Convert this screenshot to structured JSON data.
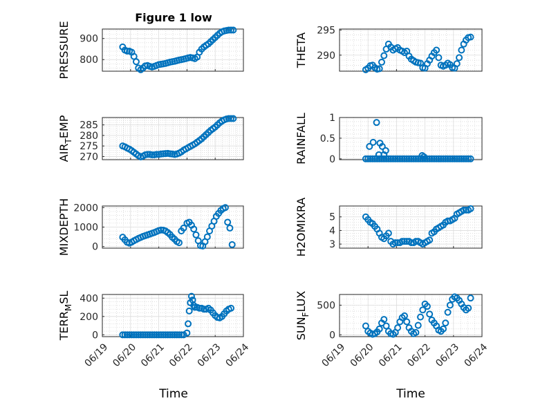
{
  "figure": {
    "title": "Figure 1 low",
    "marker_color": "#0072BD",
    "x_ticks": [
      "06/19",
      "06/20",
      "06/21",
      "06/22",
      "06/23",
      "06/24"
    ],
    "x_label": "Time"
  },
  "chart_data": [
    {
      "type": "scatter",
      "ylabel": "PRESSURE",
      "xlim": [
        0,
        5
      ],
      "ylim": [
        745,
        945
      ],
      "yticks": [
        800,
        900
      ],
      "ytick_labels": [
        "800",
        "900"
      ],
      "grid": true,
      "x": [
        0.72,
        0.8,
        0.88,
        0.96,
        1.04,
        1.12,
        1.2,
        1.28,
        1.36,
        1.44,
        1.52,
        1.6,
        1.68,
        1.76,
        1.84,
        1.92,
        2.0,
        2.08,
        2.16,
        2.24,
        2.32,
        2.4,
        2.48,
        2.56,
        2.64,
        2.72,
        2.8,
        2.88,
        2.96,
        3.04,
        3.12,
        3.2,
        3.28,
        3.36,
        3.44,
        3.52,
        3.6,
        3.68,
        3.76,
        3.84,
        3.92,
        4.0,
        4.08,
        4.16,
        4.24,
        4.32,
        4.4,
        4.48,
        4.56,
        4.64
      ],
      "y": [
        860,
        845,
        840,
        840,
        835,
        815,
        790,
        760,
        752,
        760,
        770,
        772,
        768,
        765,
        768,
        772,
        776,
        778,
        780,
        782,
        785,
        788,
        790,
        792,
        795,
        798,
        800,
        802,
        805,
        808,
        810,
        808,
        805,
        812,
        835,
        850,
        860,
        868,
        875,
        885,
        895,
        905,
        915,
        925,
        932,
        936,
        938,
        940,
        940,
        940
      ]
    },
    {
      "type": "scatter",
      "ylabel": "THETA",
      "xlim": [
        0,
        5
      ],
      "ylim": [
        286.8,
        295.2
      ],
      "yticks": [
        290,
        295
      ],
      "ytick_labels": [
        "290",
        "295"
      ],
      "grid": true,
      "x": [
        0.92,
        1.0,
        1.08,
        1.16,
        1.24,
        1.32,
        1.4,
        1.48,
        1.56,
        1.64,
        1.72,
        1.8,
        1.88,
        1.96,
        2.04,
        2.12,
        2.2,
        2.28,
        2.36,
        2.44,
        2.52,
        2.6,
        2.68,
        2.76,
        2.84,
        2.92,
        3.0,
        3.08,
        3.16,
        3.24,
        3.32,
        3.4,
        3.48,
        3.56,
        3.64,
        3.72,
        3.8,
        3.88,
        3.96,
        4.04,
        4.12,
        4.2,
        4.28,
        4.36,
        4.44,
        4.52,
        4.6
      ],
      "y": [
        287.1,
        287.4,
        287.9,
        288.0,
        287.5,
        287.2,
        287.3,
        288.6,
        289.9,
        291.2,
        292.2,
        291.6,
        291.0,
        291.3,
        291.5,
        291.0,
        290.8,
        290.5,
        290.8,
        289.8,
        289.2,
        288.9,
        288.6,
        288.5,
        288.4,
        287.5,
        287.4,
        288.3,
        289.0,
        289.8,
        290.5,
        291.0,
        289.5,
        288.0,
        287.8,
        288.0,
        288.4,
        288.1,
        287.5,
        287.4,
        288.3,
        289.5,
        291.0,
        292.2,
        293.0,
        293.5,
        293.6
      ]
    },
    {
      "type": "scatter",
      "ylabel": "AIR_TEMP",
      "xlim": [
        0,
        5
      ],
      "ylim": [
        268.5,
        288.5
      ],
      "yticks": [
        270,
        275,
        280,
        285
      ],
      "ytick_labels": [
        "270",
        "275",
        "280",
        "285"
      ],
      "grid": true,
      "x": [
        0.72,
        0.8,
        0.88,
        0.96,
        1.04,
        1.12,
        1.2,
        1.28,
        1.36,
        1.44,
        1.52,
        1.6,
        1.68,
        1.76,
        1.84,
        1.92,
        2.0,
        2.08,
        2.16,
        2.24,
        2.32,
        2.4,
        2.48,
        2.56,
        2.64,
        2.72,
        2.8,
        2.88,
        2.96,
        3.04,
        3.12,
        3.2,
        3.28,
        3.36,
        3.44,
        3.52,
        3.6,
        3.68,
        3.76,
        3.84,
        3.92,
        4.0,
        4.08,
        4.16,
        4.24,
        4.32,
        4.4,
        4.48,
        4.56,
        4.64
      ],
      "y": [
        275.0,
        274.6,
        274.0,
        273.5,
        272.8,
        272.0,
        271.2,
        270.4,
        269.8,
        270.2,
        270.8,
        271.0,
        271.0,
        270.8,
        270.8,
        271.0,
        271.0,
        271.2,
        271.3,
        271.4,
        271.5,
        271.3,
        271.2,
        271.0,
        271.2,
        271.6,
        272.2,
        273.0,
        273.6,
        274.2,
        274.8,
        275.4,
        276.0,
        276.8,
        277.6,
        278.4,
        279.4,
        280.4,
        281.4,
        282.4,
        283.2,
        284.0,
        285.0,
        286.0,
        286.8,
        287.4,
        287.8,
        288.0,
        288.0,
        288.0
      ]
    },
    {
      "type": "scatter",
      "ylabel": "RAINFALL",
      "xlim": [
        0,
        5
      ],
      "ylim": [
        -0.02,
        1.0
      ],
      "yticks": [
        0,
        0.5,
        1
      ],
      "ytick_labels": [
        "0",
        "0.5",
        "1"
      ],
      "grid": true,
      "x": [
        0.92,
        1.0,
        1.08,
        1.16,
        1.24,
        1.32,
        1.4,
        1.48,
        1.56,
        1.64,
        1.72,
        1.8,
        1.88,
        1.96,
        2.04,
        2.12,
        2.2,
        2.28,
        2.36,
        2.44,
        2.52,
        2.6,
        2.68,
        2.76,
        2.84,
        2.92,
        3.0,
        3.08,
        3.16,
        3.24,
        3.32,
        3.4,
        3.48,
        3.56,
        3.64,
        3.72,
        3.8,
        3.88,
        3.96,
        4.04,
        4.12,
        4.2,
        4.28,
        4.36,
        4.44,
        4.52,
        4.6,
        1.05,
        1.18,
        1.3,
        1.42,
        1.5,
        1.56,
        1.62,
        1.38,
        2.9,
        2.96
      ],
      "y": [
        0,
        0,
        0,
        0,
        0,
        0,
        0,
        0,
        0,
        0,
        0,
        0,
        0,
        0,
        0,
        0,
        0,
        0,
        0,
        0,
        0,
        0,
        0,
        0,
        0,
        0,
        0,
        0,
        0,
        0,
        0,
        0,
        0,
        0,
        0,
        0,
        0,
        0,
        0,
        0,
        0,
        0,
        0,
        0,
        0,
        0,
        0,
        0.3,
        0.4,
        0.88,
        0.38,
        0.3,
        0.1,
        0.2,
        0.1,
        0.08,
        0.05
      ]
    },
    {
      "type": "scatter",
      "ylabel": "MIXDEPTH",
      "xlim": [
        0,
        5
      ],
      "ylim": [
        -80,
        2080
      ],
      "yticks": [
        0,
        1000,
        2000
      ],
      "ytick_labels": [
        "0",
        "1000",
        "2000"
      ],
      "grid": true,
      "x": [
        0.72,
        0.8,
        0.88,
        0.96,
        1.04,
        1.12,
        1.2,
        1.28,
        1.36,
        1.44,
        1.52,
        1.6,
        1.68,
        1.76,
        1.84,
        1.92,
        2.0,
        2.08,
        2.16,
        2.24,
        2.32,
        2.4,
        2.48,
        2.56,
        2.64,
        2.72,
        2.8,
        2.88,
        3.0,
        3.08,
        3.16,
        3.24,
        3.32,
        3.4,
        3.48,
        3.56,
        3.64,
        3.72,
        3.8,
        3.88,
        3.96,
        4.04,
        4.12,
        4.2,
        4.28,
        4.36,
        4.44,
        4.52,
        4.6
      ],
      "y": [
        480,
        350,
        220,
        180,
        230,
        300,
        360,
        420,
        470,
        520,
        560,
        600,
        640,
        680,
        720,
        770,
        820,
        850,
        840,
        800,
        720,
        620,
        480,
        380,
        260,
        200,
        800,
        950,
        1200,
        1250,
        1100,
        900,
        600,
        300,
        50,
        30,
        250,
        500,
        800,
        1050,
        1300,
        1550,
        1700,
        1850,
        1950,
        2000,
        1250,
        950,
        100
      ]
    },
    {
      "type": "scatter",
      "ylabel": "H2OMIXRA",
      "xlim": [
        0,
        5
      ],
      "ylim": [
        2.7,
        5.8
      ],
      "yticks": [
        3,
        4,
        5
      ],
      "ytick_labels": [
        "3",
        "4",
        "5"
      ],
      "grid": true,
      "x": [
        0.92,
        1.0,
        1.08,
        1.16,
        1.24,
        1.32,
        1.4,
        1.48,
        1.56,
        1.64,
        1.72,
        1.8,
        1.88,
        1.96,
        2.04,
        2.12,
        2.2,
        2.28,
        2.36,
        2.44,
        2.52,
        2.6,
        2.68,
        2.76,
        2.84,
        2.92,
        3.0,
        3.08,
        3.16,
        3.24,
        3.32,
        3.4,
        3.48,
        3.56,
        3.64,
        3.72,
        3.8,
        3.88,
        3.96,
        4.04,
        4.12,
        4.2,
        4.28,
        4.36,
        4.44,
        4.52,
        4.6
      ],
      "y": [
        5.0,
        4.8,
        4.6,
        4.5,
        4.3,
        4.1,
        3.8,
        3.5,
        3.4,
        3.6,
        3.8,
        3.2,
        3.0,
        3.1,
        3.1,
        3.1,
        3.2,
        3.2,
        3.2,
        3.2,
        3.1,
        3.1,
        3.2,
        3.2,
        3.1,
        3.0,
        3.1,
        3.2,
        3.3,
        3.8,
        3.9,
        4.1,
        4.2,
        4.3,
        4.4,
        4.6,
        4.7,
        4.7,
        4.8,
        4.9,
        5.2,
        5.3,
        5.4,
        5.5,
        5.5,
        5.5,
        5.6
      ]
    },
    {
      "type": "scatter",
      "ylabel": "TERR_MSL",
      "xlim": [
        0,
        5
      ],
      "ylim": [
        -20,
        440
      ],
      "yticks": [
        0,
        200,
        400
      ],
      "ytick_labels": [
        "0",
        "200",
        "400"
      ],
      "grid": true,
      "x": [
        0.72,
        0.8,
        0.88,
        0.96,
        1.04,
        1.12,
        1.2,
        1.28,
        1.36,
        1.44,
        1.52,
        1.6,
        1.68,
        1.76,
        1.84,
        1.92,
        2.0,
        2.08,
        2.16,
        2.24,
        2.32,
        2.4,
        2.48,
        2.56,
        2.64,
        2.72,
        2.8,
        2.88,
        3.0,
        3.04,
        3.08,
        3.12,
        3.16,
        3.2,
        3.24,
        3.28,
        3.36,
        3.44,
        3.52,
        3.6,
        3.68,
        3.76,
        3.84,
        3.92,
        4.0,
        4.08,
        4.16,
        4.24,
        4.32,
        4.4,
        4.48,
        4.56
      ],
      "y": [
        0,
        0,
        0,
        0,
        0,
        0,
        0,
        0,
        0,
        0,
        0,
        0,
        0,
        0,
        0,
        0,
        0,
        0,
        0,
        0,
        0,
        0,
        0,
        0,
        0,
        0,
        0,
        0,
        20,
        120,
        260,
        350,
        420,
        380,
        320,
        300,
        300,
        290,
        290,
        280,
        280,
        290,
        270,
        240,
        210,
        190,
        185,
        200,
        230,
        260,
        280,
        290
      ]
    },
    {
      "type": "scatter",
      "ylabel": "SUN_FLUX",
      "xlim": [
        0,
        5
      ],
      "ylim": [
        -30,
        680
      ],
      "yticks": [
        0,
        500
      ],
      "ytick_labels": [
        "0",
        "500"
      ],
      "grid": true,
      "x": [
        0.92,
        1.0,
        1.08,
        1.16,
        1.24,
        1.32,
        1.4,
        1.48,
        1.56,
        1.64,
        1.72,
        1.8,
        1.88,
        1.96,
        2.04,
        2.12,
        2.2,
        2.28,
        2.36,
        2.44,
        2.52,
        2.6,
        2.68,
        2.76,
        2.84,
        2.92,
        3.0,
        3.08,
        3.16,
        3.24,
        3.32,
        3.4,
        3.48,
        3.56,
        3.64,
        3.72,
        3.8,
        3.88,
        3.96,
        4.04,
        4.12,
        4.2,
        4.28,
        4.36,
        4.44,
        4.52,
        4.6
      ],
      "y": [
        150,
        60,
        30,
        10,
        20,
        50,
        100,
        200,
        260,
        150,
        60,
        20,
        10,
        40,
        120,
        220,
        290,
        320,
        220,
        120,
        60,
        20,
        40,
        160,
        300,
        420,
        520,
        480,
        350,
        250,
        200,
        150,
        80,
        60,
        100,
        200,
        380,
        500,
        600,
        640,
        620,
        580,
        520,
        460,
        420,
        450,
        620
      ]
    }
  ]
}
